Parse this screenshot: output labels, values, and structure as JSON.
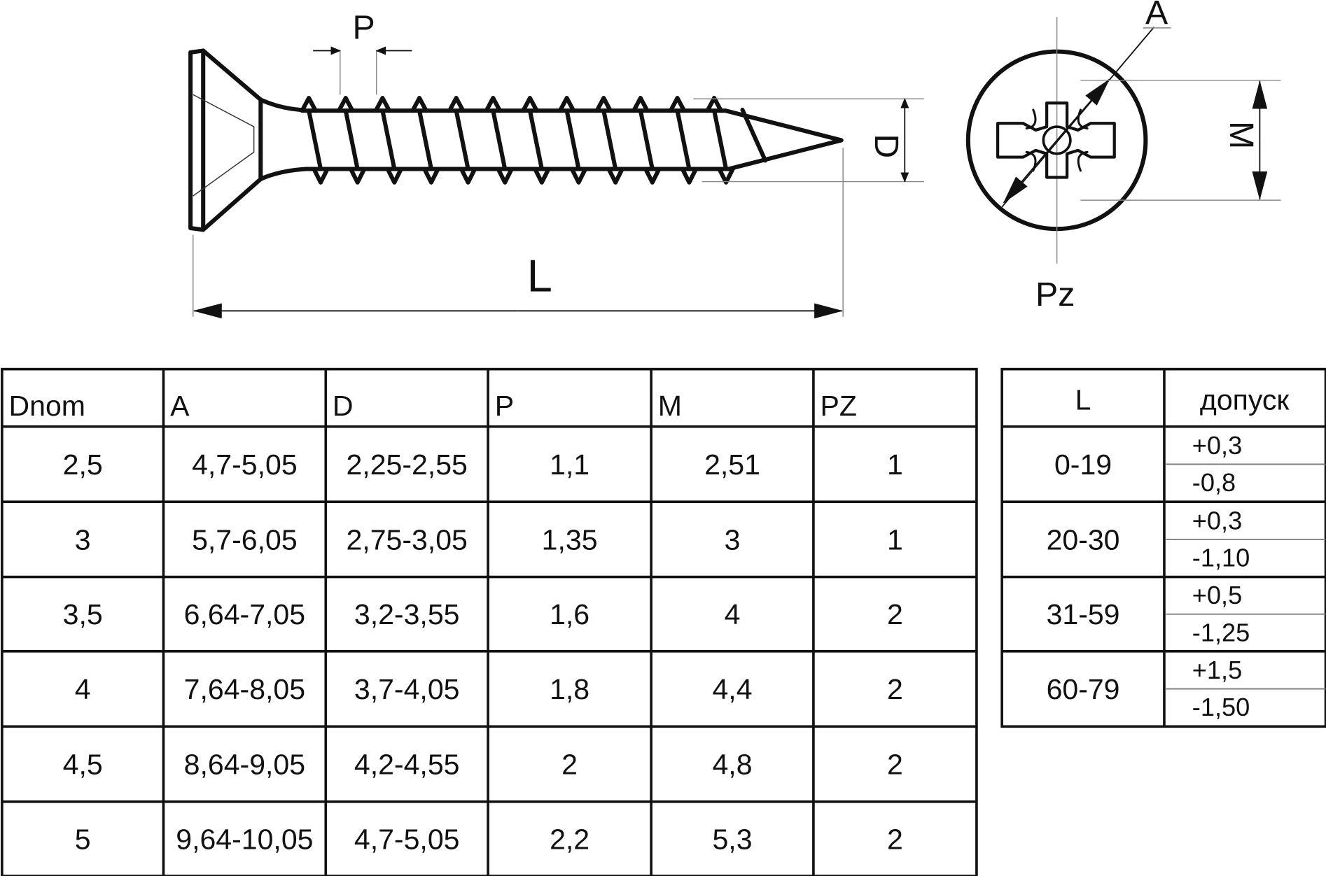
{
  "drawing": {
    "labels": {
      "P": "P",
      "D": "D",
      "L": "L",
      "M": "M",
      "A": "A",
      "Pz": "Pz"
    }
  },
  "main_table": {
    "headers": [
      "Dnom",
      "A",
      "D",
      "P",
      "M",
      "PZ"
    ],
    "rows": [
      [
        "2,5",
        "4,7-5,05",
        "2,25-2,55",
        "1,1",
        "2,51",
        "1"
      ],
      [
        "3",
        "5,7-6,05",
        "2,75-3,05",
        "1,35",
        "3",
        "1"
      ],
      [
        "3,5",
        "6,64-7,05",
        "3,2-3,55",
        "1,6",
        "4",
        "2"
      ],
      [
        "4",
        "7,64-8,05",
        "3,7-4,05",
        "1,8",
        "4,4",
        "2"
      ],
      [
        "4,5",
        "8,64-9,05",
        "4,2-4,55",
        "2",
        "4,8",
        "2"
      ],
      [
        "5",
        "9,64-10,05",
        "4,7-5,05",
        "2,2",
        "5,3",
        "2"
      ]
    ]
  },
  "tolerance_table": {
    "headers": [
      "L",
      "допуск"
    ],
    "rows": [
      {
        "range": "0-19",
        "plus": "+0,3",
        "minus": "-0,8"
      },
      {
        "range": "20-30",
        "plus": "+0,3",
        "minus": "-1,10"
      },
      {
        "range": "31-59",
        "plus": "+0,5",
        "minus": "-1,25"
      },
      {
        "range": "60-79",
        "plus": "+1,5",
        "minus": "-1,50"
      }
    ]
  }
}
